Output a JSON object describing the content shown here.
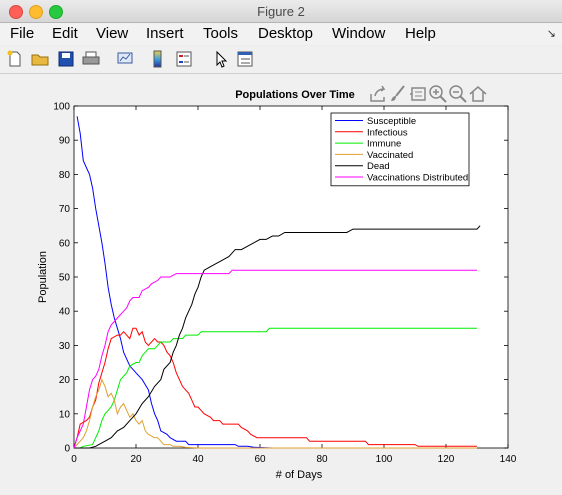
{
  "window": {
    "title": "Figure 2"
  },
  "menu": [
    "File",
    "Edit",
    "View",
    "Insert",
    "Tools",
    "Desktop",
    "Window",
    "Help"
  ],
  "toolbar_icons": [
    "new-figure-icon",
    "open-file-icon",
    "save-icon",
    "print-icon",
    "link-plot-icon",
    "insert-colorbar-icon",
    "insert-legend-icon",
    "edit-plot-pointer-icon",
    "property-editor-icon"
  ],
  "axes_toolbar_icons": [
    "export-icon",
    "brush-icon",
    "data-tips-icon",
    "zoom-in-icon",
    "zoom-out-icon",
    "restore-view-icon"
  ],
  "chart_data": {
    "type": "line",
    "title": "Populations Over Time",
    "xlabel": "# of Days",
    "ylabel": "Population",
    "xlim": [
      0,
      140
    ],
    "ylim": [
      0,
      100
    ],
    "xticks": [
      0,
      20,
      40,
      60,
      80,
      100,
      120,
      140
    ],
    "yticks": [
      0,
      10,
      20,
      30,
      40,
      50,
      60,
      70,
      80,
      90,
      100
    ],
    "grid": false,
    "legend_position": "top-right",
    "series": [
      {
        "name": "Susceptible",
        "color": "#0000ff",
        "points": [
          [
            1,
            97
          ],
          [
            2,
            92
          ],
          [
            3,
            84
          ],
          [
            5,
            80
          ],
          [
            6,
            76
          ],
          [
            7,
            70
          ],
          [
            8,
            65
          ],
          [
            9,
            60
          ],
          [
            10,
            54
          ],
          [
            11,
            47
          ],
          [
            12,
            42
          ],
          [
            13,
            38
          ],
          [
            14,
            35
          ],
          [
            15,
            32
          ],
          [
            16,
            28
          ],
          [
            17,
            26
          ],
          [
            18,
            24
          ],
          [
            20,
            22
          ],
          [
            22,
            20
          ],
          [
            24,
            17
          ],
          [
            25,
            13
          ],
          [
            26,
            10
          ],
          [
            27,
            8
          ],
          [
            28,
            5
          ],
          [
            30,
            4
          ],
          [
            31,
            3
          ],
          [
            33,
            2
          ],
          [
            36,
            2
          ],
          [
            37,
            1
          ],
          [
            40,
            1
          ],
          [
            42,
            1
          ],
          [
            52,
            1
          ],
          [
            53,
            0.5
          ],
          [
            56,
            0.5
          ],
          [
            58,
            0.2
          ],
          [
            64,
            0
          ],
          [
            130,
            0
          ]
        ]
      },
      {
        "name": "Infectious",
        "color": "#ff0000",
        "points": [
          [
            0,
            0
          ],
          [
            1,
            3
          ],
          [
            2,
            7
          ],
          [
            4,
            8
          ],
          [
            5,
            9
          ],
          [
            6,
            12
          ],
          [
            7,
            14
          ],
          [
            8,
            19
          ],
          [
            9,
            22
          ],
          [
            10,
            25
          ],
          [
            11,
            29
          ],
          [
            12,
            32
          ],
          [
            14,
            33
          ],
          [
            15,
            33
          ],
          [
            16,
            34
          ],
          [
            18,
            32
          ],
          [
            19,
            35
          ],
          [
            20,
            35
          ],
          [
            21,
            33
          ],
          [
            22,
            34
          ],
          [
            23,
            31
          ],
          [
            24,
            30
          ],
          [
            25,
            31
          ],
          [
            26,
            32
          ],
          [
            27,
            31
          ],
          [
            28,
            31
          ],
          [
            29,
            30
          ],
          [
            30,
            28
          ],
          [
            31,
            27
          ],
          [
            32,
            25
          ],
          [
            33,
            22
          ],
          [
            34,
            20
          ],
          [
            35,
            18
          ],
          [
            36,
            17
          ],
          [
            37,
            16
          ],
          [
            38,
            14
          ],
          [
            39,
            12
          ],
          [
            40,
            12
          ],
          [
            41,
            11
          ],
          [
            42,
            10
          ],
          [
            44,
            9
          ],
          [
            45,
            8
          ],
          [
            47,
            8
          ],
          [
            48,
            7
          ],
          [
            53,
            7
          ],
          [
            54,
            6
          ],
          [
            56,
            5
          ],
          [
            57,
            4
          ],
          [
            59,
            3
          ],
          [
            60,
            3
          ],
          [
            75,
            3
          ],
          [
            76,
            2
          ],
          [
            94,
            2
          ],
          [
            95,
            1
          ],
          [
            96,
            1
          ],
          [
            110,
            1
          ],
          [
            111,
            0.5
          ],
          [
            130,
            0.5
          ]
        ]
      },
      {
        "name": "Immune",
        "color": "#00ee00",
        "points": [
          [
            0,
            0
          ],
          [
            2,
            0
          ],
          [
            3,
            0.5
          ],
          [
            6,
            1
          ],
          [
            7,
            3
          ],
          [
            8,
            5
          ],
          [
            9,
            8
          ],
          [
            10,
            10
          ],
          [
            11,
            11
          ],
          [
            12,
            12
          ],
          [
            13,
            14
          ],
          [
            14,
            17
          ],
          [
            15,
            20
          ],
          [
            16,
            21
          ],
          [
            17,
            22
          ],
          [
            18,
            24
          ],
          [
            20,
            25
          ],
          [
            21,
            25
          ],
          [
            22,
            27
          ],
          [
            23,
            28
          ],
          [
            24,
            29
          ],
          [
            26,
            29
          ],
          [
            27,
            30
          ],
          [
            28,
            31
          ],
          [
            29,
            31
          ],
          [
            31,
            31
          ],
          [
            32,
            32
          ],
          [
            34,
            32
          ],
          [
            35,
            32
          ],
          [
            36,
            33
          ],
          [
            40,
            33
          ],
          [
            41,
            34
          ],
          [
            55,
            34
          ],
          [
            56,
            34
          ],
          [
            60,
            34
          ],
          [
            61,
            34
          ],
          [
            62,
            34
          ],
          [
            63,
            35
          ],
          [
            130,
            35
          ]
        ]
      },
      {
        "name": "Vaccinated",
        "color": "#e0a030",
        "points": [
          [
            0,
            0
          ],
          [
            3,
            3
          ],
          [
            4,
            5
          ],
          [
            5,
            8
          ],
          [
            6,
            12
          ],
          [
            7,
            15
          ],
          [
            8,
            17
          ],
          [
            9,
            20
          ],
          [
            10,
            18
          ],
          [
            11,
            15
          ],
          [
            12,
            16
          ],
          [
            13,
            14
          ],
          [
            14,
            10
          ],
          [
            15,
            12
          ],
          [
            16,
            13
          ],
          [
            17,
            11
          ],
          [
            18,
            9
          ],
          [
            19,
            10
          ],
          [
            20,
            8
          ],
          [
            21,
            7
          ],
          [
            22,
            8
          ],
          [
            23,
            5
          ],
          [
            24,
            4
          ],
          [
            26,
            3
          ],
          [
            27,
            3
          ],
          [
            28,
            2
          ],
          [
            29,
            1
          ],
          [
            31,
            1
          ],
          [
            32,
            0.5
          ],
          [
            34,
            0.5
          ],
          [
            36,
            0.2
          ],
          [
            40,
            0
          ],
          [
            130,
            0
          ]
        ]
      },
      {
        "name": "Dead",
        "color": "#000000",
        "points": [
          [
            0,
            0
          ],
          [
            4,
            0
          ],
          [
            5,
            0
          ],
          [
            7,
            0.5
          ],
          [
            8,
            1
          ],
          [
            10,
            2
          ],
          [
            12,
            3
          ],
          [
            14,
            5
          ],
          [
            16,
            6
          ],
          [
            18,
            8
          ],
          [
            20,
            10
          ],
          [
            22,
            13
          ],
          [
            24,
            15
          ],
          [
            26,
            18
          ],
          [
            28,
            20
          ],
          [
            29,
            23
          ],
          [
            31,
            25
          ],
          [
            32,
            28
          ],
          [
            33,
            30
          ],
          [
            34,
            33
          ],
          [
            35,
            35
          ],
          [
            36,
            38
          ],
          [
            37,
            40
          ],
          [
            38,
            42
          ],
          [
            39,
            45
          ],
          [
            40,
            47
          ],
          [
            41,
            50
          ],
          [
            42,
            52
          ],
          [
            44,
            53
          ],
          [
            46,
            54
          ],
          [
            48,
            55
          ],
          [
            50,
            56
          ],
          [
            52,
            58
          ],
          [
            54,
            58
          ],
          [
            56,
            59
          ],
          [
            58,
            60
          ],
          [
            60,
            61
          ],
          [
            62,
            61
          ],
          [
            64,
            62
          ],
          [
            66,
            62
          ],
          [
            68,
            63
          ],
          [
            70,
            63
          ],
          [
            80,
            63
          ],
          [
            86,
            63
          ],
          [
            88,
            63
          ],
          [
            90,
            64
          ],
          [
            130,
            64
          ],
          [
            131,
            65
          ]
        ]
      },
      {
        "name": "Vaccinations Distributed",
        "color": "#ff00ff",
        "points": [
          [
            0,
            0
          ],
          [
            1,
            3
          ],
          [
            3,
            7
          ],
          [
            4,
            12
          ],
          [
            5,
            17
          ],
          [
            6,
            20
          ],
          [
            7,
            21
          ],
          [
            8,
            23
          ],
          [
            9,
            27
          ],
          [
            10,
            30
          ],
          [
            11,
            34
          ],
          [
            12,
            36
          ],
          [
            13,
            37
          ],
          [
            14,
            38
          ],
          [
            15,
            39
          ],
          [
            16,
            40
          ],
          [
            17,
            41
          ],
          [
            18,
            43
          ],
          [
            19,
            44
          ],
          [
            21,
            44
          ],
          [
            22,
            46
          ],
          [
            24,
            47
          ],
          [
            25,
            48
          ],
          [
            27,
            49
          ],
          [
            28,
            50
          ],
          [
            30,
            50
          ],
          [
            31,
            50
          ],
          [
            33,
            51
          ],
          [
            45,
            51
          ],
          [
            46,
            51
          ],
          [
            50,
            51
          ],
          [
            51,
            52
          ],
          [
            60,
            52
          ],
          [
            130,
            52
          ]
        ]
      }
    ]
  }
}
